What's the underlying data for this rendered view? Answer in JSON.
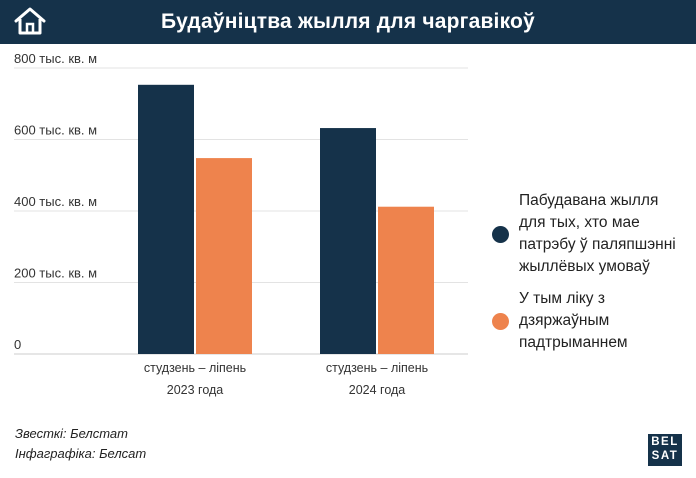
{
  "header": {
    "title": "Будаўніцтва жылля для чаргавікоў",
    "icon": "home-icon"
  },
  "chart_data": {
    "type": "bar",
    "categories": [
      [
        "студзень – ліпень",
        "2023 года"
      ],
      [
        "студзень – ліпень",
        "2024 года"
      ]
    ],
    "series": [
      {
        "name": "Пабудавана жылля для тых, хто мае патрэбу ў паляпшэнні жыллёвых умоваў",
        "color": "#15324a",
        "values": [
          753,
          632
        ]
      },
      {
        "name": "У тым ліку з дзяржаўным падтрыманнем",
        "color": "#ee834d",
        "values": [
          548,
          412
        ]
      }
    ],
    "y_ticks": [
      0,
      200,
      400,
      600,
      800
    ],
    "y_tick_labels": [
      "0",
      "200 тыс. кв. м",
      "400 тыс. кв. м",
      "600 тыс. кв. м",
      "800 тыс. кв. м"
    ],
    "ylim": [
      0,
      800
    ],
    "grid": true,
    "legend_position": "right",
    "xlabel": "",
    "ylabel": ""
  },
  "legend": {
    "items": [
      {
        "lines": [
          "Пабудавана жылля",
          "для тых, хто мае",
          "патрэбу ў паляпшэнні",
          "жыллёвых умоваў"
        ],
        "color": "#15324a"
      },
      {
        "lines": [
          "У тым ліку з",
          "дзяржаўным",
          "падтрыманнем"
        ],
        "color": "#ee834d"
      }
    ]
  },
  "footer": {
    "source": "Звесткі: Белстат",
    "infographic": "Інфаграфіка: Белсат"
  },
  "logo": {
    "line1": "BEL",
    "line2": "SAT"
  }
}
